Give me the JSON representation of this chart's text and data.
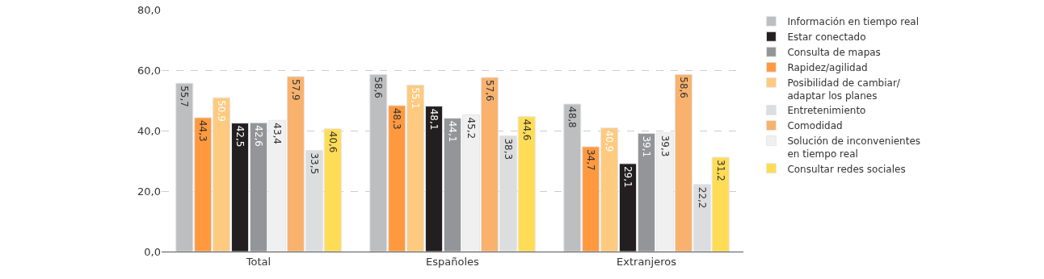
{
  "chart_data": {
    "type": "bar",
    "categories": [
      "Total",
      "Españoles",
      "Extranjeros"
    ],
    "ylim": [
      0,
      80
    ],
    "yticks": [
      {
        "value": 0,
        "label": "0,0"
      },
      {
        "value": 20,
        "label": "20,0"
      },
      {
        "value": 40,
        "label": "40,0"
      },
      {
        "value": 60,
        "label": "60,0"
      },
      {
        "value": 80,
        "label": "80,0"
      }
    ],
    "grid": "y",
    "legend": "right",
    "series": [
      {
        "name": "Información en tiempo real",
        "color": "#bcbec0",
        "values": [
          55.7,
          58.6,
          48.8
        ],
        "value_labels": [
          "55,7",
          "58,6",
          "48,8"
        ]
      },
      {
        "name": "Rapidez/agilidad",
        "color": "#ff9940",
        "values": [
          44.3,
          48.3,
          34.7
        ],
        "value_labels": [
          "44,3",
          "48,3",
          "34,7"
        ]
      },
      {
        "name": "Posibilidad de cambiar/\nadaptar los planes",
        "color": "#fdca80",
        "values": [
          50.9,
          55.1,
          40.9
        ],
        "value_labels": [
          "50,9",
          "55,1",
          "40,9"
        ]
      },
      {
        "name": "Estar conectado",
        "color": "#231f20",
        "values": [
          42.5,
          48.1,
          29.1
        ],
        "value_labels": [
          "42,5",
          "48,1",
          "29,1"
        ]
      },
      {
        "name": "Consulta de mapas",
        "color": "#939598",
        "values": [
          42.6,
          44.1,
          39.1
        ],
        "value_labels": [
          "42,6",
          "44,1",
          "39,1"
        ]
      },
      {
        "name": "Solución de inconvenientes\nen tiempo real",
        "color": "#f0f0f0",
        "values": [
          43.4,
          45.2,
          39.3
        ],
        "value_labels": [
          "43,4",
          "45,2",
          "39,3"
        ]
      },
      {
        "name": "Comodidad",
        "color": "#f8b26e",
        "values": [
          57.9,
          57.6,
          58.6
        ],
        "value_labels": [
          "57,9",
          "57,6",
          "58,6"
        ]
      },
      {
        "name": "Entretenimiento",
        "color": "#dcdddf",
        "values": [
          33.5,
          38.3,
          22.2
        ],
        "value_labels": [
          "33,5",
          "38,3",
          "22,2"
        ]
      },
      {
        "name": "Consultar redes sociales",
        "color": "#ffdc55",
        "values": [
          40.6,
          44.6,
          31.2
        ],
        "value_labels": [
          "40,6",
          "44,6",
          "31,2"
        ]
      }
    ]
  }
}
